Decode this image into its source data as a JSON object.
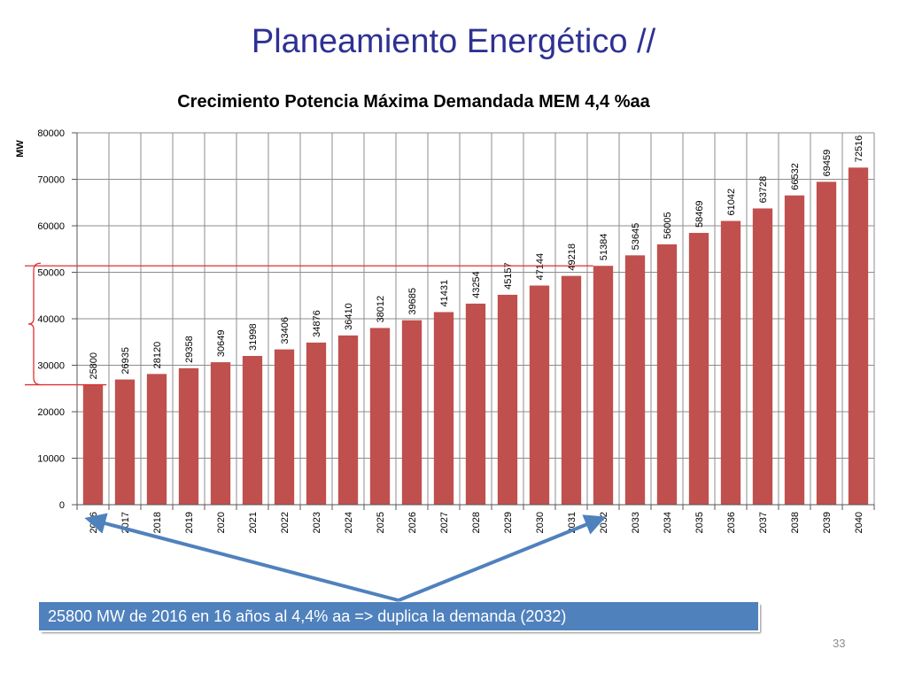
{
  "slide": {
    "title": "Planeamiento Energético //",
    "callout": "25800 MW  de 2016 en 16  años al  4,4% aa => duplica la demanda (2032)",
    "page_number": "33"
  },
  "chart_data": {
    "type": "bar",
    "title": "Crecimiento Potencia Máxima Demandada MEM 4,4 %aa",
    "xlabel": "",
    "ylabel": "MW",
    "ylim": [
      0,
      80000
    ],
    "yticks": [
      0,
      10000,
      20000,
      30000,
      40000,
      50000,
      60000,
      70000,
      80000
    ],
    "grid": true,
    "legend": "none",
    "bar_color": "#c0504d",
    "categories": [
      "2016",
      "2017",
      "2018",
      "2019",
      "2020",
      "2021",
      "2022",
      "2023",
      "2024",
      "2025",
      "2026",
      "2027",
      "2028",
      "2029",
      "2030",
      "2031",
      "2032",
      "2033",
      "2034",
      "2035",
      "2036",
      "2037",
      "2038",
      "2039",
      "2040"
    ],
    "values": [
      25800,
      26935,
      28120,
      29358,
      30649,
      31998,
      33406,
      34876,
      36410,
      38012,
      39685,
      41431,
      43254,
      45157,
      47144,
      49218,
      51384,
      53645,
      56005,
      58469,
      61042,
      63728,
      66532,
      69459,
      72516
    ]
  },
  "annotations": {
    "line_color": "#e03030",
    "arrow_color": "#4f81bd",
    "reference_lines": [
      25800,
      51384
    ]
  }
}
